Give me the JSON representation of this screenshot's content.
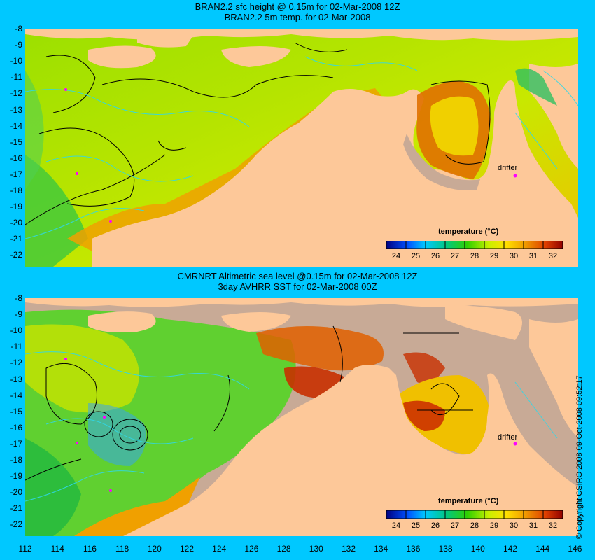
{
  "panels": [
    {
      "title_line1": "BRAN2.2 sfc height @ 0.15m for 02-Mar-2008 12Z",
      "title_line2": "BRAN2.2 5m temp. for 02-Mar-2008",
      "legend_title": "temperature (°C)",
      "drifter_label": "drifter"
    },
    {
      "title_line1": "CMRNRT Altimetric sea level  @0.15m  for 02-Mar-2008 12Z",
      "title_line2": "3day AVHRR SST for 02-Mar-2008 00Z",
      "legend_title": "temperature (°C)",
      "drifter_label": "drifter"
    }
  ],
  "y_ticks": [
    "-8",
    "-9",
    "-10",
    "-11",
    "-12",
    "-13",
    "-14",
    "-15",
    "-16",
    "-17",
    "-18",
    "-19",
    "-20",
    "-21",
    "-22"
  ],
  "x_ticks": [
    "112",
    "114",
    "116",
    "118",
    "120",
    "122",
    "124",
    "126",
    "128",
    "130",
    "132",
    "134",
    "136",
    "138",
    "140",
    "142",
    "144",
    "146"
  ],
  "colorbar_labels": [
    "24",
    "25",
    "26",
    "27",
    "28",
    "29",
    "30",
    "31",
    "32"
  ],
  "copyright": "© Copyright CSIRO 2008   09-Oct-2008 09:52:17",
  "colors": {
    "background": "#00c8ff",
    "land": "#fdc899",
    "no_data": "#c8aa96",
    "contour": "#000000",
    "bathymetry": "#30d8e8",
    "drifter": "#ff00ff"
  }
}
